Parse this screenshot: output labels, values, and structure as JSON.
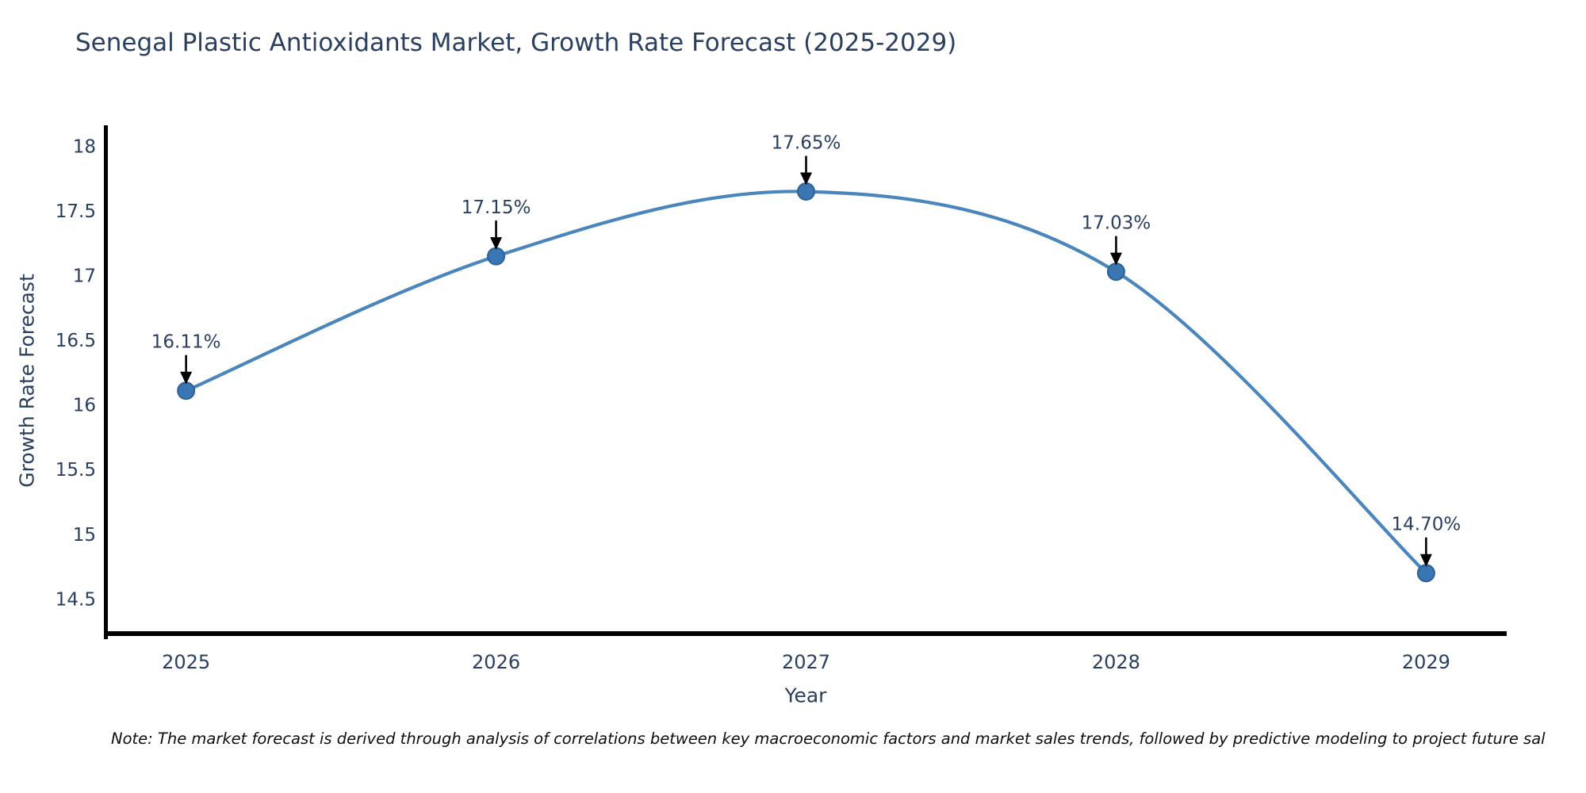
{
  "figure": {
    "note": "Note: The market forecast is derived through analysis of correlations between key macroeconomic factors and market sales trends, followed by predictive modeling to project future sal"
  },
  "chart_data": {
    "type": "line",
    "title": "Senegal Plastic Antioxidants Market, Growth Rate Forecast (2025-2029)",
    "xlabel": "Year",
    "ylabel": "Growth Rate Forecast",
    "x": [
      2025,
      2026,
      2027,
      2028,
      2029
    ],
    "series": [
      {
        "name": "Growth Rate Forecast",
        "values": [
          16.11,
          17.15,
          17.65,
          17.03,
          14.7
        ]
      }
    ],
    "point_labels": [
      "16.11%",
      "17.15%",
      "17.65%",
      "17.03%",
      "14.70%"
    ],
    "yticks": [
      14.5,
      15,
      15.5,
      16,
      16.5,
      17,
      17.5,
      18
    ],
    "xlim": [
      2024.74,
      2029.26
    ],
    "ylim": [
      14.22,
      18.15
    ],
    "grid": false,
    "legend": "none",
    "line_shape": "spline",
    "annotation_style": "black-arrow-down",
    "colors": {
      "line": "#4a86bb",
      "marker": "#3a76b1",
      "marker_edge": "#2d6199",
      "arrow": "#000000",
      "axis_line": "#000000",
      "tick_text": "#2a3f5f",
      "annotation_text": "#2a3f5f",
      "note_text": "#0e0e0e"
    }
  }
}
